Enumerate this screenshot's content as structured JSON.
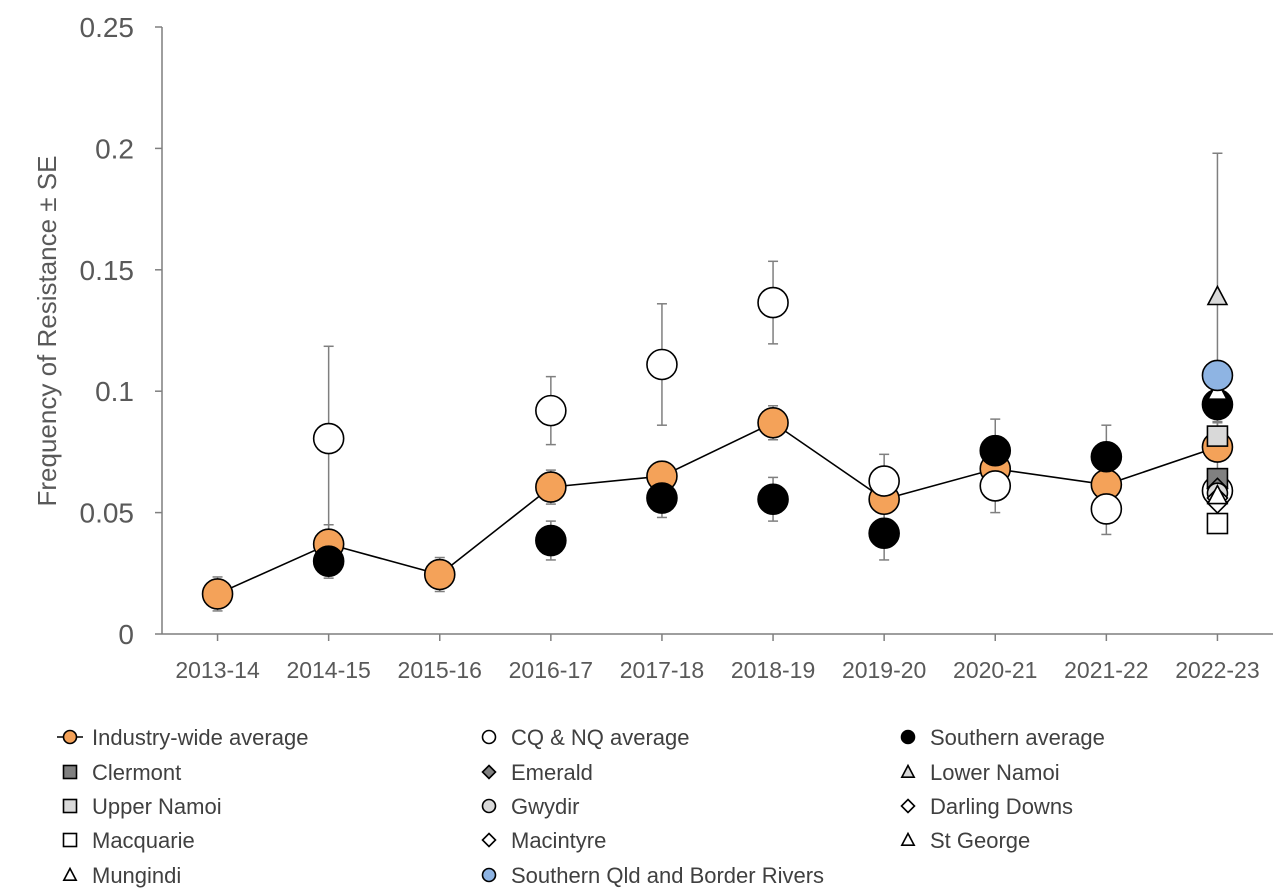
{
  "chart_data": {
    "type": "scatter",
    "ylabel": "Frequency of Resistance ± SE",
    "xlabel": "",
    "categories": [
      "2013-14",
      "2014-15",
      "2015-16",
      "2016-17",
      "2017-18",
      "2018-19",
      "2019-20",
      "2020-21",
      "2021-22",
      "2022-23"
    ],
    "ylim": [
      0,
      0.25
    ],
    "yticks": [
      {
        "value": 0,
        "label": "0"
      },
      {
        "value": 0.05,
        "label": "0.05"
      },
      {
        "value": 0.1,
        "label": "0.1"
      },
      {
        "value": 0.15,
        "label": "0.15"
      },
      {
        "value": 0.2,
        "label": "0.2"
      },
      {
        "value": 0.25,
        "label": "0.25"
      }
    ],
    "grid": false,
    "legend_position": "bottom",
    "series": [
      {
        "name": "Industry-wide average",
        "marker": "circle",
        "fill": "#f4a259",
        "line": true,
        "values": [
          0.0165,
          0.037,
          0.0245,
          0.0605,
          0.065,
          0.087,
          0.0555,
          0.068,
          0.0615,
          0.077
        ],
        "errors": [
          0.007,
          0.008,
          0.007,
          0.007,
          0.006,
          0.007,
          0.008,
          0.01,
          0.01,
          0.01
        ]
      },
      {
        "name": "CQ & NQ average",
        "marker": "circle",
        "fill": "#ffffff",
        "line": false,
        "values": [
          null,
          0.0805,
          null,
          0.092,
          0.111,
          0.1365,
          0.063,
          0.061,
          0.0515,
          0.059
        ],
        "errors": [
          null,
          0.038,
          null,
          0.014,
          0.025,
          0.017,
          0.011,
          0.011,
          0.0105,
          0.0035
        ]
      },
      {
        "name": "Southern average",
        "marker": "circle",
        "fill": "#000000",
        "line": false,
        "values": [
          null,
          0.03,
          null,
          0.0385,
          0.056,
          0.0555,
          0.0415,
          0.0755,
          0.073,
          0.0945
        ],
        "errors": [
          null,
          0.007,
          null,
          0.008,
          0.008,
          0.009,
          0.011,
          0.013,
          0.013,
          0.007
        ]
      },
      {
        "name": "Clermont",
        "marker": "square",
        "fill": "#808080",
        "line": false,
        "values": [
          null,
          null,
          null,
          null,
          null,
          null,
          null,
          null,
          null,
          0.064
        ]
      },
      {
        "name": "Emerald",
        "marker": "diamond",
        "fill": "#808080",
        "line": false,
        "values": [
          null,
          null,
          null,
          null,
          null,
          null,
          null,
          null,
          null,
          0.06
        ]
      },
      {
        "name": "Lower Namoi",
        "marker": "triangle",
        "fill": "#d9d9d9",
        "line": false,
        "values": [
          null,
          null,
          null,
          null,
          null,
          null,
          null,
          null,
          null,
          0.139
        ],
        "errors": [
          null,
          null,
          null,
          null,
          null,
          null,
          null,
          null,
          null,
          0.059
        ]
      },
      {
        "name": "Upper Namoi",
        "marker": "square",
        "fill": "#d9d9d9",
        "line": false,
        "values": [
          null,
          null,
          null,
          null,
          null,
          null,
          null,
          null,
          null,
          0.0815
        ]
      },
      {
        "name": "Gwydir",
        "marker": "circle",
        "fill": "#d9d9d9",
        "line": false,
        "values": [
          null,
          null,
          null,
          null,
          null,
          null,
          null,
          null,
          null,
          0.058
        ]
      },
      {
        "name": "Darling Downs",
        "marker": "diamond",
        "fill": "#ffffff",
        "line": false,
        "values": [
          null,
          null,
          null,
          null,
          null,
          null,
          null,
          null,
          null,
          0.056
        ]
      },
      {
        "name": "Macquarie",
        "marker": "square",
        "fill": "#ffffff",
        "line": false,
        "values": [
          null,
          null,
          null,
          null,
          null,
          null,
          null,
          null,
          null,
          0.0455
        ]
      },
      {
        "name": "Macintyre",
        "marker": "diamond",
        "fill": "#ffffff",
        "line": false,
        "values": [
          null,
          null,
          null,
          null,
          null,
          null,
          null,
          null,
          null,
          0.054
        ]
      },
      {
        "name": "St George",
        "marker": "triangle",
        "fill": "#ffffff",
        "line": false,
        "values": [
          null,
          null,
          null,
          null,
          null,
          null,
          null,
          null,
          null,
          0.057
        ]
      },
      {
        "name": "Mungindi",
        "marker": "triangle",
        "fill": "#ffffff",
        "line": false,
        "values": [
          null,
          null,
          null,
          null,
          null,
          null,
          null,
          null,
          null,
          0.1
        ]
      },
      {
        "name": "Southern Qld and Border Rivers",
        "marker": "circle",
        "fill": "#8eb4e3",
        "line": false,
        "values": [
          null,
          null,
          null,
          null,
          null,
          null,
          null,
          null,
          null,
          0.1065
        ]
      }
    ]
  }
}
